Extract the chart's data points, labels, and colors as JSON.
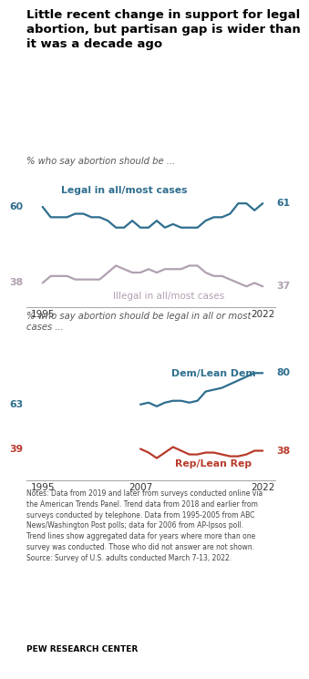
{
  "title": "Little recent change in support for legal\nabortion, but partisan gap is wider than\nit was a decade ago",
  "title_fontsize": 9.5,
  "chart1_subtitle": "% who say abortion should be ...",
  "chart2_subtitle": "% who say abortion should be legal in all or most\ncases ...",
  "teal_color": "#2E6E8E",
  "gray_color": "#B0A0B0",
  "rep_color": "#B83A2A",
  "notes": "Notes: Data from 2019 and later from surveys conducted online via\nthe American Trends Panel. Trend data from 2018 and earlier from\nsurveys conducted by telephone. Data from 1995-2005 from ABC\nNews/Washington Post polls; data for 2006 from AP-Ipsos poll.\nTrend lines show aggregated data for years where more than one\nsurvey was conducted. Those who did not answer are not shown.\nSource: Survey of U.S. adults conducted March 7-13, 2022.",
  "source_label": "PEW RESEARCH CENTER",
  "legal_years": [
    1995,
    1996,
    1997,
    1998,
    1999,
    2000,
    2001,
    2002,
    2003,
    2004,
    2005,
    2006,
    2007,
    2008,
    2009,
    2010,
    2011,
    2012,
    2013,
    2014,
    2015,
    2016,
    2017,
    2018,
    2019,
    2020,
    2021,
    2022
  ],
  "legal_values": [
    60,
    57,
    57,
    57,
    58,
    58,
    57,
    57,
    56,
    54,
    54,
    56,
    54,
    54,
    56,
    54,
    55,
    54,
    54,
    54,
    56,
    57,
    57,
    58,
    61,
    61,
    59,
    61
  ],
  "illegal_years": [
    1995,
    1996,
    1997,
    1998,
    1999,
    2000,
    2001,
    2002,
    2003,
    2004,
    2005,
    2006,
    2007,
    2008,
    2009,
    2010,
    2011,
    2012,
    2013,
    2014,
    2015,
    2016,
    2017,
    2018,
    2019,
    2020,
    2021,
    2022
  ],
  "illegal_values": [
    38,
    40,
    40,
    40,
    39,
    39,
    39,
    39,
    41,
    43,
    42,
    41,
    41,
    42,
    41,
    42,
    42,
    42,
    43,
    43,
    41,
    40,
    40,
    39,
    38,
    37,
    38,
    37
  ],
  "dem_years": [
    2007,
    2008,
    2009,
    2010,
    2011,
    2012,
    2013,
    2014,
    2015,
    2016,
    2017,
    2018,
    2019,
    2020,
    2021,
    2022
  ],
  "dem_values": [
    63,
    64,
    62,
    64,
    65,
    65,
    64,
    65,
    70,
    71,
    72,
    74,
    76,
    78,
    80,
    80
  ],
  "rep_years": [
    2007,
    2008,
    2009,
    2010,
    2011,
    2012,
    2013,
    2014,
    2015,
    2016,
    2017,
    2018,
    2019,
    2020,
    2021,
    2022
  ],
  "rep_values": [
    39,
    37,
    34,
    37,
    40,
    38,
    36,
    36,
    37,
    37,
    36,
    35,
    35,
    36,
    38,
    38
  ],
  "background_color": "#FFFFFF"
}
